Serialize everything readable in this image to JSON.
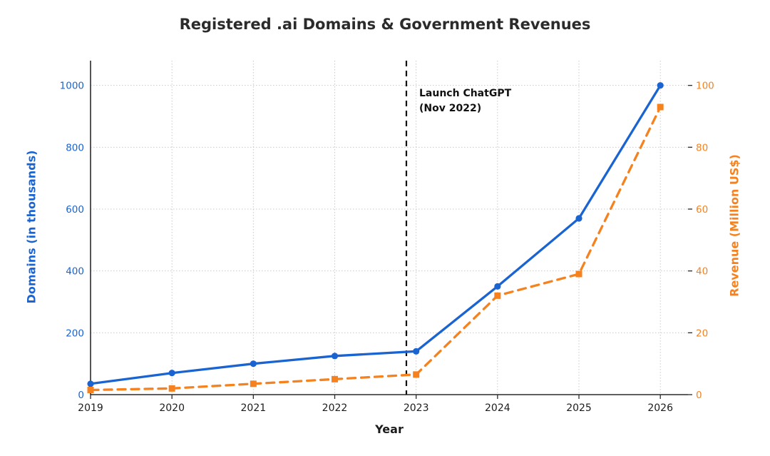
{
  "chart_data": {
    "type": "line",
    "title": "Registered .ai Domains & Government Revenues",
    "x": [
      2019,
      2020,
      2021,
      2022,
      2023,
      2024,
      2025,
      2026
    ],
    "series": [
      {
        "name": "Domains (in thousands)",
        "axis": "left",
        "style": "solid",
        "marker": "circle",
        "values": [
          35,
          70,
          100,
          125,
          140,
          350,
          570,
          1000
        ]
      },
      {
        "name": "Revenue (Million US$)",
        "axis": "right",
        "style": "dashed",
        "marker": "square",
        "values": [
          1.5,
          2,
          3.5,
          5,
          6.5,
          32,
          39,
          93
        ]
      }
    ],
    "x_axis": {
      "label": "Year",
      "ticks": [
        2019,
        2020,
        2021,
        2022,
        2023,
        2024,
        2025,
        2026
      ],
      "range": [
        2019,
        2026.34
      ]
    },
    "left_axis": {
      "label": "Domains (in thousands)",
      "ticks": [
        0,
        200,
        400,
        600,
        800,
        1000
      ],
      "range": [
        0,
        1080
      ]
    },
    "right_axis": {
      "label": "Revenue (Million US$)",
      "ticks": [
        0,
        20,
        40,
        60,
        80,
        100
      ],
      "range": [
        0,
        108
      ]
    },
    "vline": {
      "x": 2022.88,
      "label_line1": "Launch ChatGPT",
      "label_line2": "(Nov 2022)",
      "style": "dashed"
    },
    "grid": true,
    "legend": "none",
    "colors": {
      "domains_series": "#1a64d1",
      "revenue_series": "#f5821f",
      "title_text": "#2b2b2b",
      "tick_text": "#1c1c1c",
      "grid_line": "#c9c9c9",
      "spine": "#2a2a2a",
      "vline": "#111111",
      "background": "#ffffff"
    }
  }
}
